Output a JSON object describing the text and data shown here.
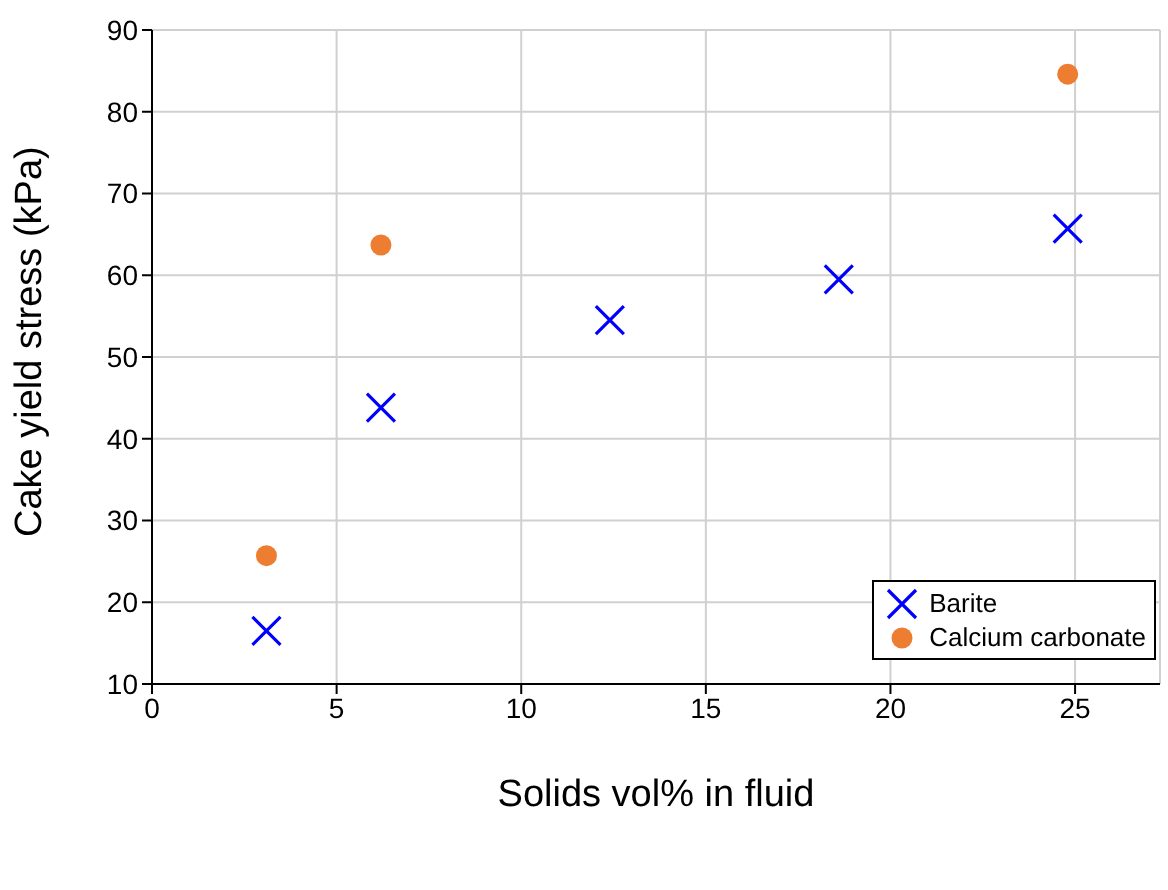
{
  "chart_data": {
    "type": "scatter",
    "xlabel": "Solids vol% in fluid",
    "ylabel": "Cake yield stress (kPa)",
    "xlim": [
      0,
      27.3
    ],
    "xticks": [
      0,
      5,
      10,
      15,
      20,
      25
    ],
    "ylim": [
      10,
      90
    ],
    "yticks": [
      10,
      20,
      30,
      40,
      50,
      60,
      70,
      80,
      90
    ],
    "grid": true,
    "legend": "bottom right",
    "series": [
      {
        "name": "Barite",
        "color": "#0000ff",
        "marker": "cross",
        "x": [
          3.1,
          6.2,
          12.4,
          18.6,
          24.8
        ],
        "values": [
          16.5,
          43.8,
          54.5,
          59.5,
          65.7
        ]
      },
      {
        "name": "Calcium carbonate",
        "color": "#ed7d31",
        "marker": "circle",
        "x": [
          3.1,
          6.2,
          24.8
        ],
        "values": [
          25.7,
          63.7,
          84.6
        ]
      }
    ]
  }
}
